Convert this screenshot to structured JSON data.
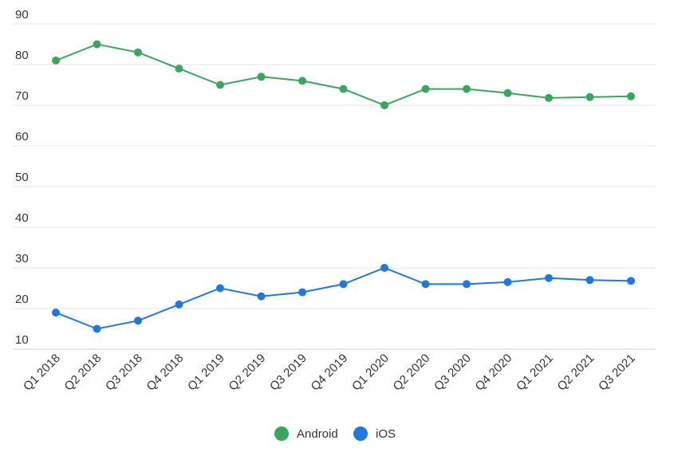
{
  "chart_data": {
    "type": "line",
    "title": "",
    "xlabel": "",
    "ylabel": "",
    "categories": [
      "Q1 2018",
      "Q2 2018",
      "Q3 2018",
      "Q4 2018",
      "Q1 2019",
      "Q2 2019",
      "Q3 2019",
      "Q4 2019",
      "Q1 2020",
      "Q2 2020",
      "Q3 2020",
      "Q4 2020",
      "Q1 2021",
      "Q2 2021",
      "Q3 2021"
    ],
    "ylim": [
      10,
      90
    ],
    "yticks": [
      10,
      20,
      30,
      40,
      50,
      60,
      70,
      80,
      90
    ],
    "grid": true,
    "legend_position": "bottom-center",
    "series": [
      {
        "name": "Android",
        "color": "#3aa55d",
        "values": [
          81,
          85,
          83,
          79,
          75,
          77,
          76,
          74,
          70,
          74,
          74,
          73,
          71.8,
          72,
          72.2
        ]
      },
      {
        "name": "iOS",
        "color": "#1f78e0",
        "values": [
          19,
          15,
          17,
          21,
          25,
          23,
          24,
          26,
          30,
          26,
          26,
          26.5,
          27.5,
          27,
          26.8
        ]
      }
    ]
  }
}
